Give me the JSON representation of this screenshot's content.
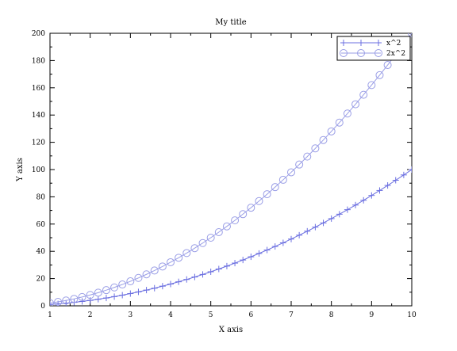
{
  "chart_data": {
    "type": "line",
    "title": "My title",
    "xlabel": "X axis",
    "ylabel": "Y axis",
    "xlim": [
      1,
      10
    ],
    "ylim": [
      0,
      200
    ],
    "x_ticks": [
      1,
      2,
      3,
      4,
      5,
      6,
      7,
      8,
      9,
      10
    ],
    "y_ticks": [
      0,
      20,
      40,
      60,
      80,
      100,
      120,
      140,
      160,
      180,
      200
    ],
    "grid": false,
    "legend_position": "top-right",
    "x": [
      1,
      1.2,
      1.4,
      1.6,
      1.8,
      2,
      2.2,
      2.4,
      2.6,
      2.8,
      3,
      3.2,
      3.4,
      3.6,
      3.8,
      4,
      4.2,
      4.4,
      4.6,
      4.8,
      5,
      5.2,
      5.4,
      5.6,
      5.8,
      6,
      6.2,
      6.4,
      6.6,
      6.8,
      7,
      7.2,
      7.4,
      7.6,
      7.8,
      8,
      8.2,
      8.4,
      8.6,
      8.8,
      9,
      9.2,
      9.4,
      9.6,
      9.8,
      10
    ],
    "series": [
      {
        "name": "x^2",
        "marker": "plus",
        "color": "#6b6fe0",
        "values": [
          1,
          1.44,
          1.96,
          2.56,
          3.24,
          4,
          4.84,
          5.76,
          6.76,
          7.84,
          9,
          10.24,
          11.56,
          12.96,
          14.44,
          16,
          17.64,
          19.36,
          21.16,
          23.04,
          25,
          27.04,
          29.16,
          31.36,
          33.64,
          36,
          38.44,
          40.96,
          43.56,
          46.24,
          49,
          51.84,
          54.76,
          57.76,
          60.84,
          64,
          67.24,
          70.56,
          73.96,
          77.44,
          81,
          84.64,
          88.36,
          92.16,
          96.04,
          100
        ]
      },
      {
        "name": "2x^2",
        "marker": "circle",
        "color": "#9a9ee6",
        "values": [
          2,
          2.88,
          3.92,
          5.12,
          6.48,
          8,
          9.68,
          11.52,
          13.52,
          15.68,
          18,
          20.48,
          23.12,
          25.92,
          28.88,
          32,
          35.28,
          38.72,
          42.32,
          46.08,
          50,
          54.08,
          58.32,
          62.72,
          67.28,
          72,
          76.88,
          81.92,
          87.12,
          92.48,
          98,
          103.68,
          109.52,
          115.52,
          121.68,
          128,
          134.48,
          141.12,
          147.92,
          154.88,
          162,
          169.28,
          176.72,
          184.32,
          192.08,
          200
        ]
      }
    ]
  }
}
